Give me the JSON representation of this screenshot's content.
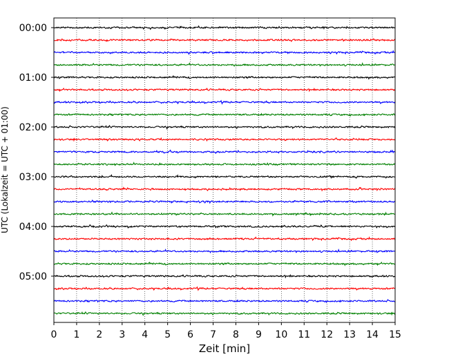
{
  "chart_data": {
    "type": "line",
    "title": "",
    "xlabel": "Zeit  [min]",
    "ylabel": "UTC (Lokalzeit = UTC + 01:00)",
    "xlim": [
      0,
      15
    ],
    "x_ticks": [
      0,
      1,
      2,
      3,
      4,
      5,
      6,
      7,
      8,
      9,
      10,
      11,
      12,
      13,
      14,
      15
    ],
    "x_tick_labels": [
      "0",
      "1",
      "2",
      "3",
      "4",
      "5",
      "6",
      "7",
      "8",
      "9",
      "10",
      "11",
      "12",
      "13",
      "14",
      "15"
    ],
    "y_tick_labels": [
      "00:00",
      "01:00",
      "02:00",
      "03:00",
      "04:00",
      "05:00"
    ],
    "trace_minutes": 15,
    "traces_per_hour": 4,
    "grid": "vertical dotted lines at each minute",
    "trace_colors": [
      "#000000",
      "#ff0000",
      "#0000ff",
      "#008000"
    ],
    "series": [
      {
        "start": "00:00",
        "color": "#000000"
      },
      {
        "start": "00:15",
        "color": "#ff0000"
      },
      {
        "start": "00:30",
        "color": "#0000ff"
      },
      {
        "start": "00:45",
        "color": "#008000"
      },
      {
        "start": "01:00",
        "color": "#000000"
      },
      {
        "start": "01:15",
        "color": "#ff0000"
      },
      {
        "start": "01:30",
        "color": "#0000ff"
      },
      {
        "start": "01:45",
        "color": "#008000"
      },
      {
        "start": "02:00",
        "color": "#000000"
      },
      {
        "start": "02:15",
        "color": "#ff0000"
      },
      {
        "start": "02:30",
        "color": "#0000ff"
      },
      {
        "start": "02:45",
        "color": "#008000"
      },
      {
        "start": "03:00",
        "color": "#000000"
      },
      {
        "start": "03:15",
        "color": "#ff0000"
      },
      {
        "start": "03:30",
        "color": "#0000ff"
      },
      {
        "start": "03:45",
        "color": "#008000"
      },
      {
        "start": "04:00",
        "color": "#000000"
      },
      {
        "start": "04:15",
        "color": "#ff0000"
      },
      {
        "start": "04:30",
        "color": "#0000ff"
      },
      {
        "start": "04:45",
        "color": "#008000"
      },
      {
        "start": "05:00",
        "color": "#000000"
      },
      {
        "start": "05:15",
        "color": "#ff0000"
      },
      {
        "start": "05:30",
        "color": "#0000ff"
      },
      {
        "start": "05:45",
        "color": "#008000"
      }
    ]
  }
}
